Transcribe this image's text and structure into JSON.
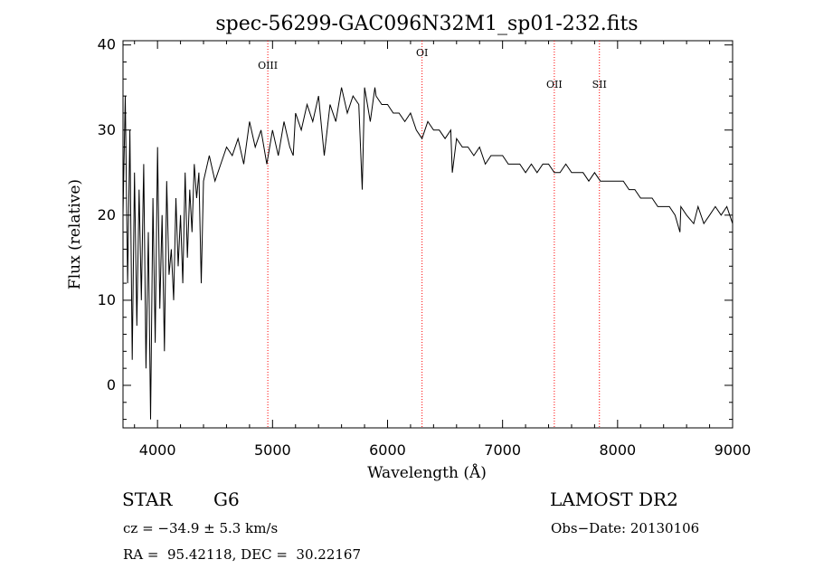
{
  "chart_data": {
    "type": "line",
    "title": "spec-56299-GAC096N32M1_sp01-232.fits",
    "xlabel": "Wavelength (Å)",
    "ylabel": "Flux (relative)",
    "xlim": [
      3700,
      9000
    ],
    "ylim": [
      -5,
      40.5
    ],
    "x_ticks": [
      4000,
      5000,
      6000,
      7000,
      8000,
      9000
    ],
    "y_ticks": [
      0,
      10,
      20,
      30,
      40
    ],
    "grid": false,
    "series": [
      {
        "x": [
          3700,
          3720,
          3740,
          3760,
          3780,
          3800,
          3820,
          3840,
          3860,
          3880,
          3900,
          3920,
          3940,
          3960,
          3980,
          4000,
          4020,
          4040,
          4060,
          4080,
          4100,
          4120,
          4140,
          4160,
          4180,
          4200,
          4220,
          4240,
          4260,
          4280,
          4300,
          4320,
          4340,
          4360,
          4380,
          4400,
          4450,
          4500,
          4550,
          4600,
          4650,
          4700,
          4750,
          4800,
          4850,
          4900,
          4950,
          5000,
          5050,
          5100,
          5150,
          5180,
          5200,
          5250,
          5300,
          5350,
          5400,
          5450,
          5500,
          5550,
          5600,
          5650,
          5700,
          5750,
          5780,
          5800,
          5850,
          5890,
          5900,
          5950,
          6000,
          6050,
          6100,
          6150,
          6200,
          6250,
          6300,
          6350,
          6400,
          6450,
          6500,
          6550,
          6563,
          6600,
          6650,
          6700,
          6750,
          6800,
          6850,
          6900,
          6950,
          7000,
          7050,
          7100,
          7150,
          7200,
          7250,
          7300,
          7350,
          7400,
          7450,
          7500,
          7550,
          7600,
          7650,
          7700,
          7750,
          7800,
          7850,
          7900,
          7950,
          8000,
          8050,
          8100,
          8150,
          8200,
          8250,
          8300,
          8350,
          8400,
          8450,
          8500,
          8542,
          8550,
          8600,
          8662,
          8700,
          8750,
          8800,
          8850,
          8900,
          8950,
          9000
        ],
        "y": [
          20,
          34,
          12,
          30,
          3,
          25,
          7,
          23,
          10,
          26,
          2,
          18,
          -4,
          22,
          5,
          28,
          9,
          20,
          4,
          24,
          13,
          16,
          10,
          22,
          14,
          20,
          12,
          25,
          15,
          23,
          18,
          26,
          22,
          25,
          12,
          24,
          27,
          24,
          26,
          28,
          27,
          29,
          26,
          31,
          28,
          30,
          26,
          30,
          27,
          31,
          28,
          27,
          32,
          30,
          33,
          31,
          34,
          27,
          33,
          31,
          35,
          32,
          34,
          33,
          23,
          35,
          31,
          35,
          34,
          33,
          33,
          32,
          32,
          31,
          32,
          30,
          29,
          31,
          30,
          30,
          29,
          30,
          25,
          29,
          28,
          28,
          27,
          28,
          26,
          27,
          27,
          27,
          26,
          26,
          26,
          25,
          26,
          25,
          26,
          26,
          25,
          25,
          26,
          25,
          25,
          25,
          24,
          25,
          24,
          24,
          24,
          24,
          24,
          23,
          23,
          22,
          22,
          22,
          21,
          21,
          21,
          20,
          18,
          21,
          20,
          19,
          21,
          19,
          20,
          21,
          20,
          21,
          19
        ]
      }
    ],
    "lines": [
      {
        "label": "OIII",
        "x": 4959
      },
      {
        "label": "OI",
        "x": 6300
      },
      {
        "label": "OII",
        "x": 7450
      },
      {
        "label": "SII",
        "x": 7842
      }
    ]
  },
  "info": {
    "object_class": "STAR",
    "subclass": "G6",
    "survey": "LAMOST DR2",
    "cz": "cz = −34.9 ± 5.3 km/s",
    "obs_date": "Obs−Date: 20130106",
    "coords": "RA =  95.42118, DEC =  30.22167"
  }
}
